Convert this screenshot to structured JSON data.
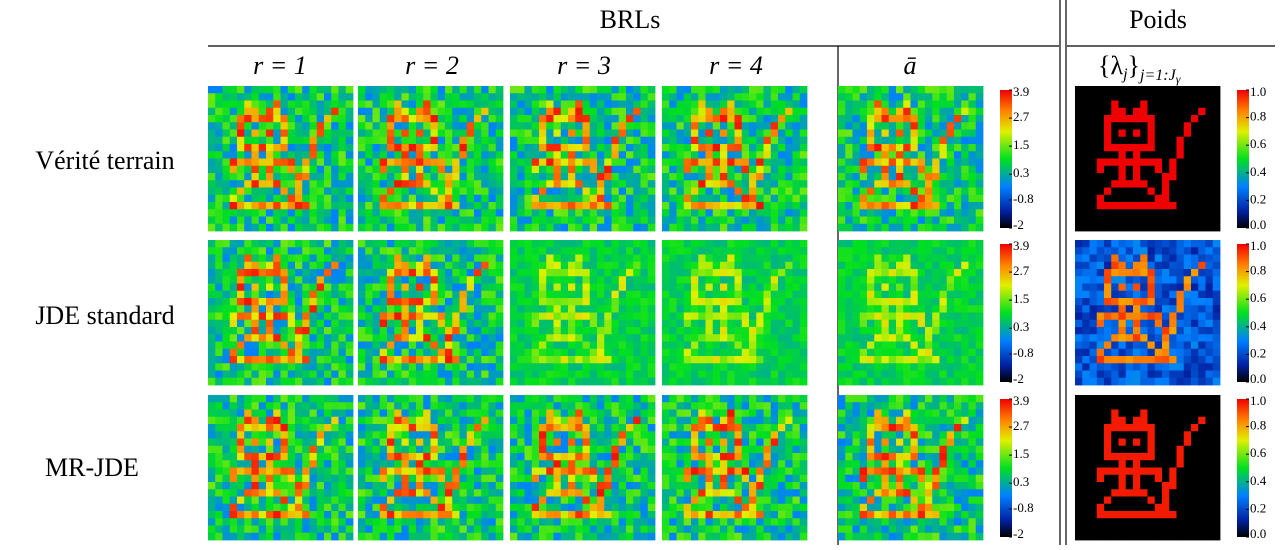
{
  "header": {
    "brls": "BRLs",
    "poids": "Poids"
  },
  "columns": {
    "brl": [
      "r = 1",
      "r = 2",
      "r = 3",
      "r = 4"
    ],
    "mean": "ā",
    "lambda": [
      "{λ",
      "j",
      "}",
      "j=1:J",
      "γ"
    ]
  },
  "rows": [
    "Vérité terrain",
    "JDE standard",
    "MR-JDE"
  ],
  "brl_colorbar": {
    "ticks": [
      3.9,
      2.7,
      1.5,
      0.3,
      -0.8,
      -2
    ]
  },
  "weight_colorbar": {
    "ticks": [
      {
        "value": 1,
        "label": "1.0"
      },
      0.8,
      0.6,
      0.4,
      0.2,
      {
        "value": 0,
        "label": "0.0"
      }
    ]
  }
}
